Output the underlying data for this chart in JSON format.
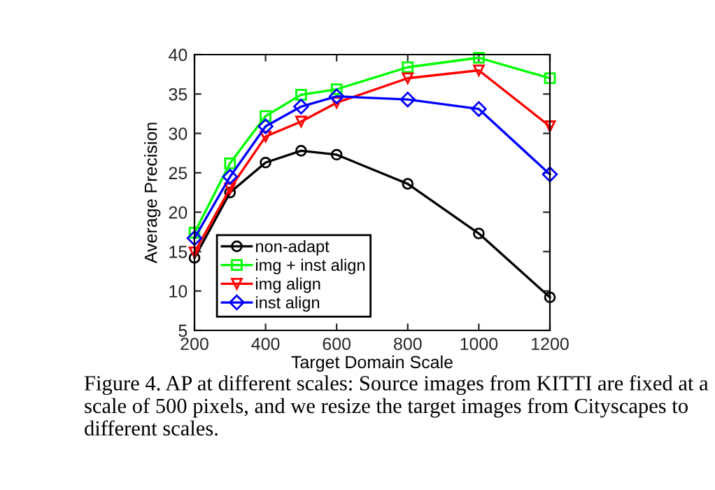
{
  "chart_data": {
    "type": "line",
    "xlabel": "Target Domain Scale",
    "ylabel": "Average Precision",
    "x": [
      200,
      300,
      400,
      500,
      600,
      800,
      1000,
      1200
    ],
    "series": [
      {
        "name": "non-adapt",
        "color": "#000000",
        "marker": "circle",
        "values": [
          14.2,
          22.5,
          26.3,
          27.8,
          27.3,
          23.6,
          17.3,
          9.2
        ]
      },
      {
        "name": "img + inst align",
        "color": "#00ff00",
        "marker": "square",
        "values": [
          17.4,
          26.2,
          32.2,
          34.9,
          35.6,
          38.4,
          39.6,
          37.0
        ]
      },
      {
        "name": "img align",
        "color": "#ff0000",
        "marker": "triangle_down",
        "values": [
          14.9,
          23.0,
          29.6,
          31.5,
          33.9,
          37.0,
          38.0,
          30.9
        ]
      },
      {
        "name": "inst align",
        "color": "#0000ff",
        "marker": "diamond",
        "values": [
          16.7,
          24.5,
          30.9,
          33.4,
          34.7,
          34.3,
          33.1,
          24.8
        ]
      }
    ],
    "xlim": [
      200,
      1200
    ],
    "ylim": [
      5,
      40
    ],
    "xticks": [
      200,
      400,
      600,
      800,
      1000,
      1200
    ],
    "yticks": [
      5,
      10,
      15,
      20,
      25,
      30,
      35,
      40
    ],
    "grid": false,
    "legend": "bottom left",
    "line_style": "solid",
    "annotations": [
      "Figure 4. AP at different scales: Source images from KITTI are fixed at a scale of 500 pixels, and we resize the target images from Cityscapes to different scales."
    ]
  }
}
